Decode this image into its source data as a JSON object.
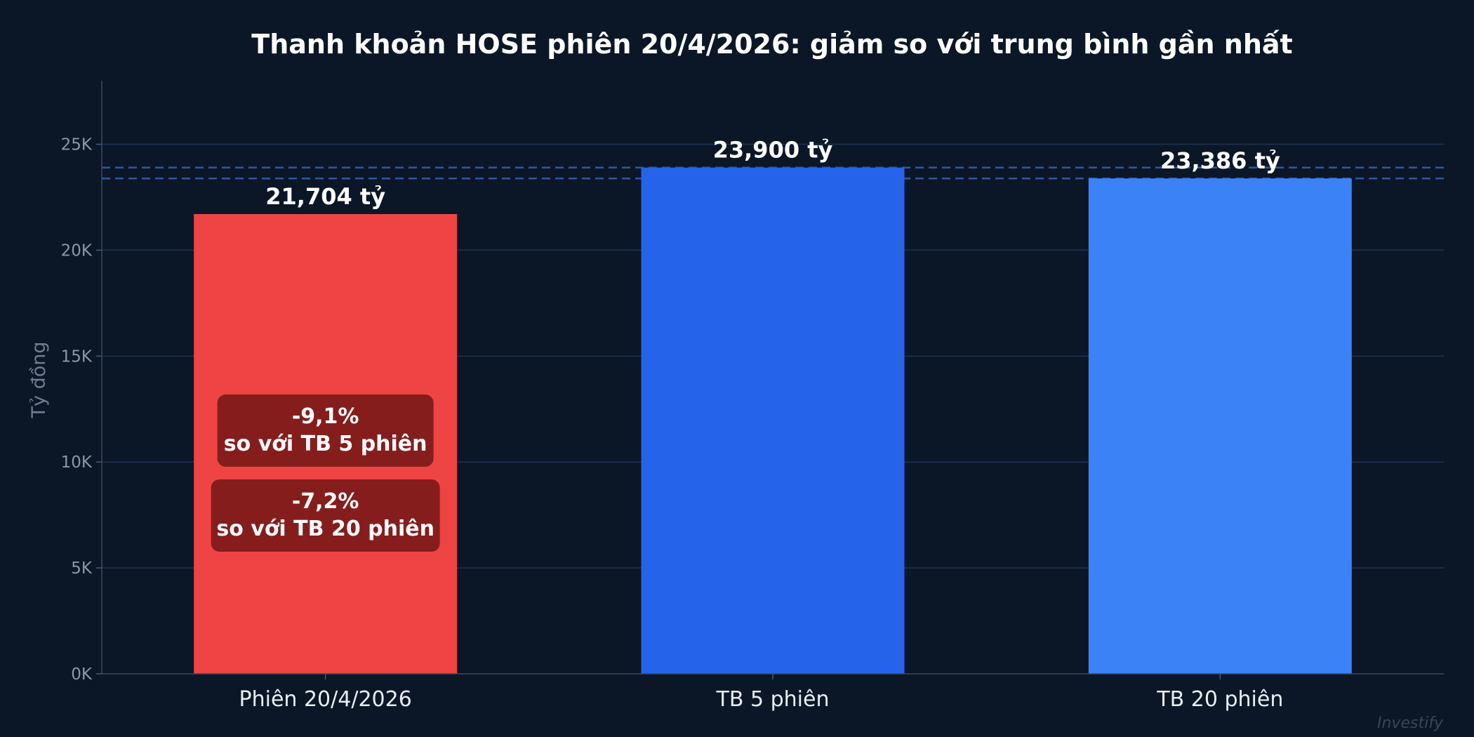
{
  "chart_data": {
    "type": "bar",
    "title": "Thanh khoản HOSE phiên 20/4/2026: giảm so với trung bình gần nhất",
    "xlabel": "",
    "ylabel": "Tỷ đồng",
    "ylim": [
      0,
      28000
    ],
    "yticks": [
      0,
      5000,
      10000,
      15000,
      20000,
      25000
    ],
    "ytick_labels": [
      "0K",
      "5K",
      "10K",
      "15K",
      "20K",
      "25K"
    ],
    "grid": true,
    "categories": [
      "Phiên 20/4/2026",
      "TB 5 phiên",
      "TB 20 phiên"
    ],
    "values": [
      21704,
      23900,
      23386
    ],
    "value_labels": [
      "21,704 tỷ",
      "23,900 tỷ",
      "23,386 tỷ"
    ],
    "colors": [
      "#ef4444",
      "#2563eb",
      "#3b82f6"
    ],
    "reference_lines": [
      23900,
      23386
    ],
    "annotations": [
      {
        "lines": [
          "-9,1%",
          "so với TB 5 phiên"
        ]
      },
      {
        "lines": [
          "-7,2%",
          "so với TB 20 phiên"
        ]
      }
    ],
    "annotation_color": "#861d1d",
    "watermark": "Investify"
  }
}
